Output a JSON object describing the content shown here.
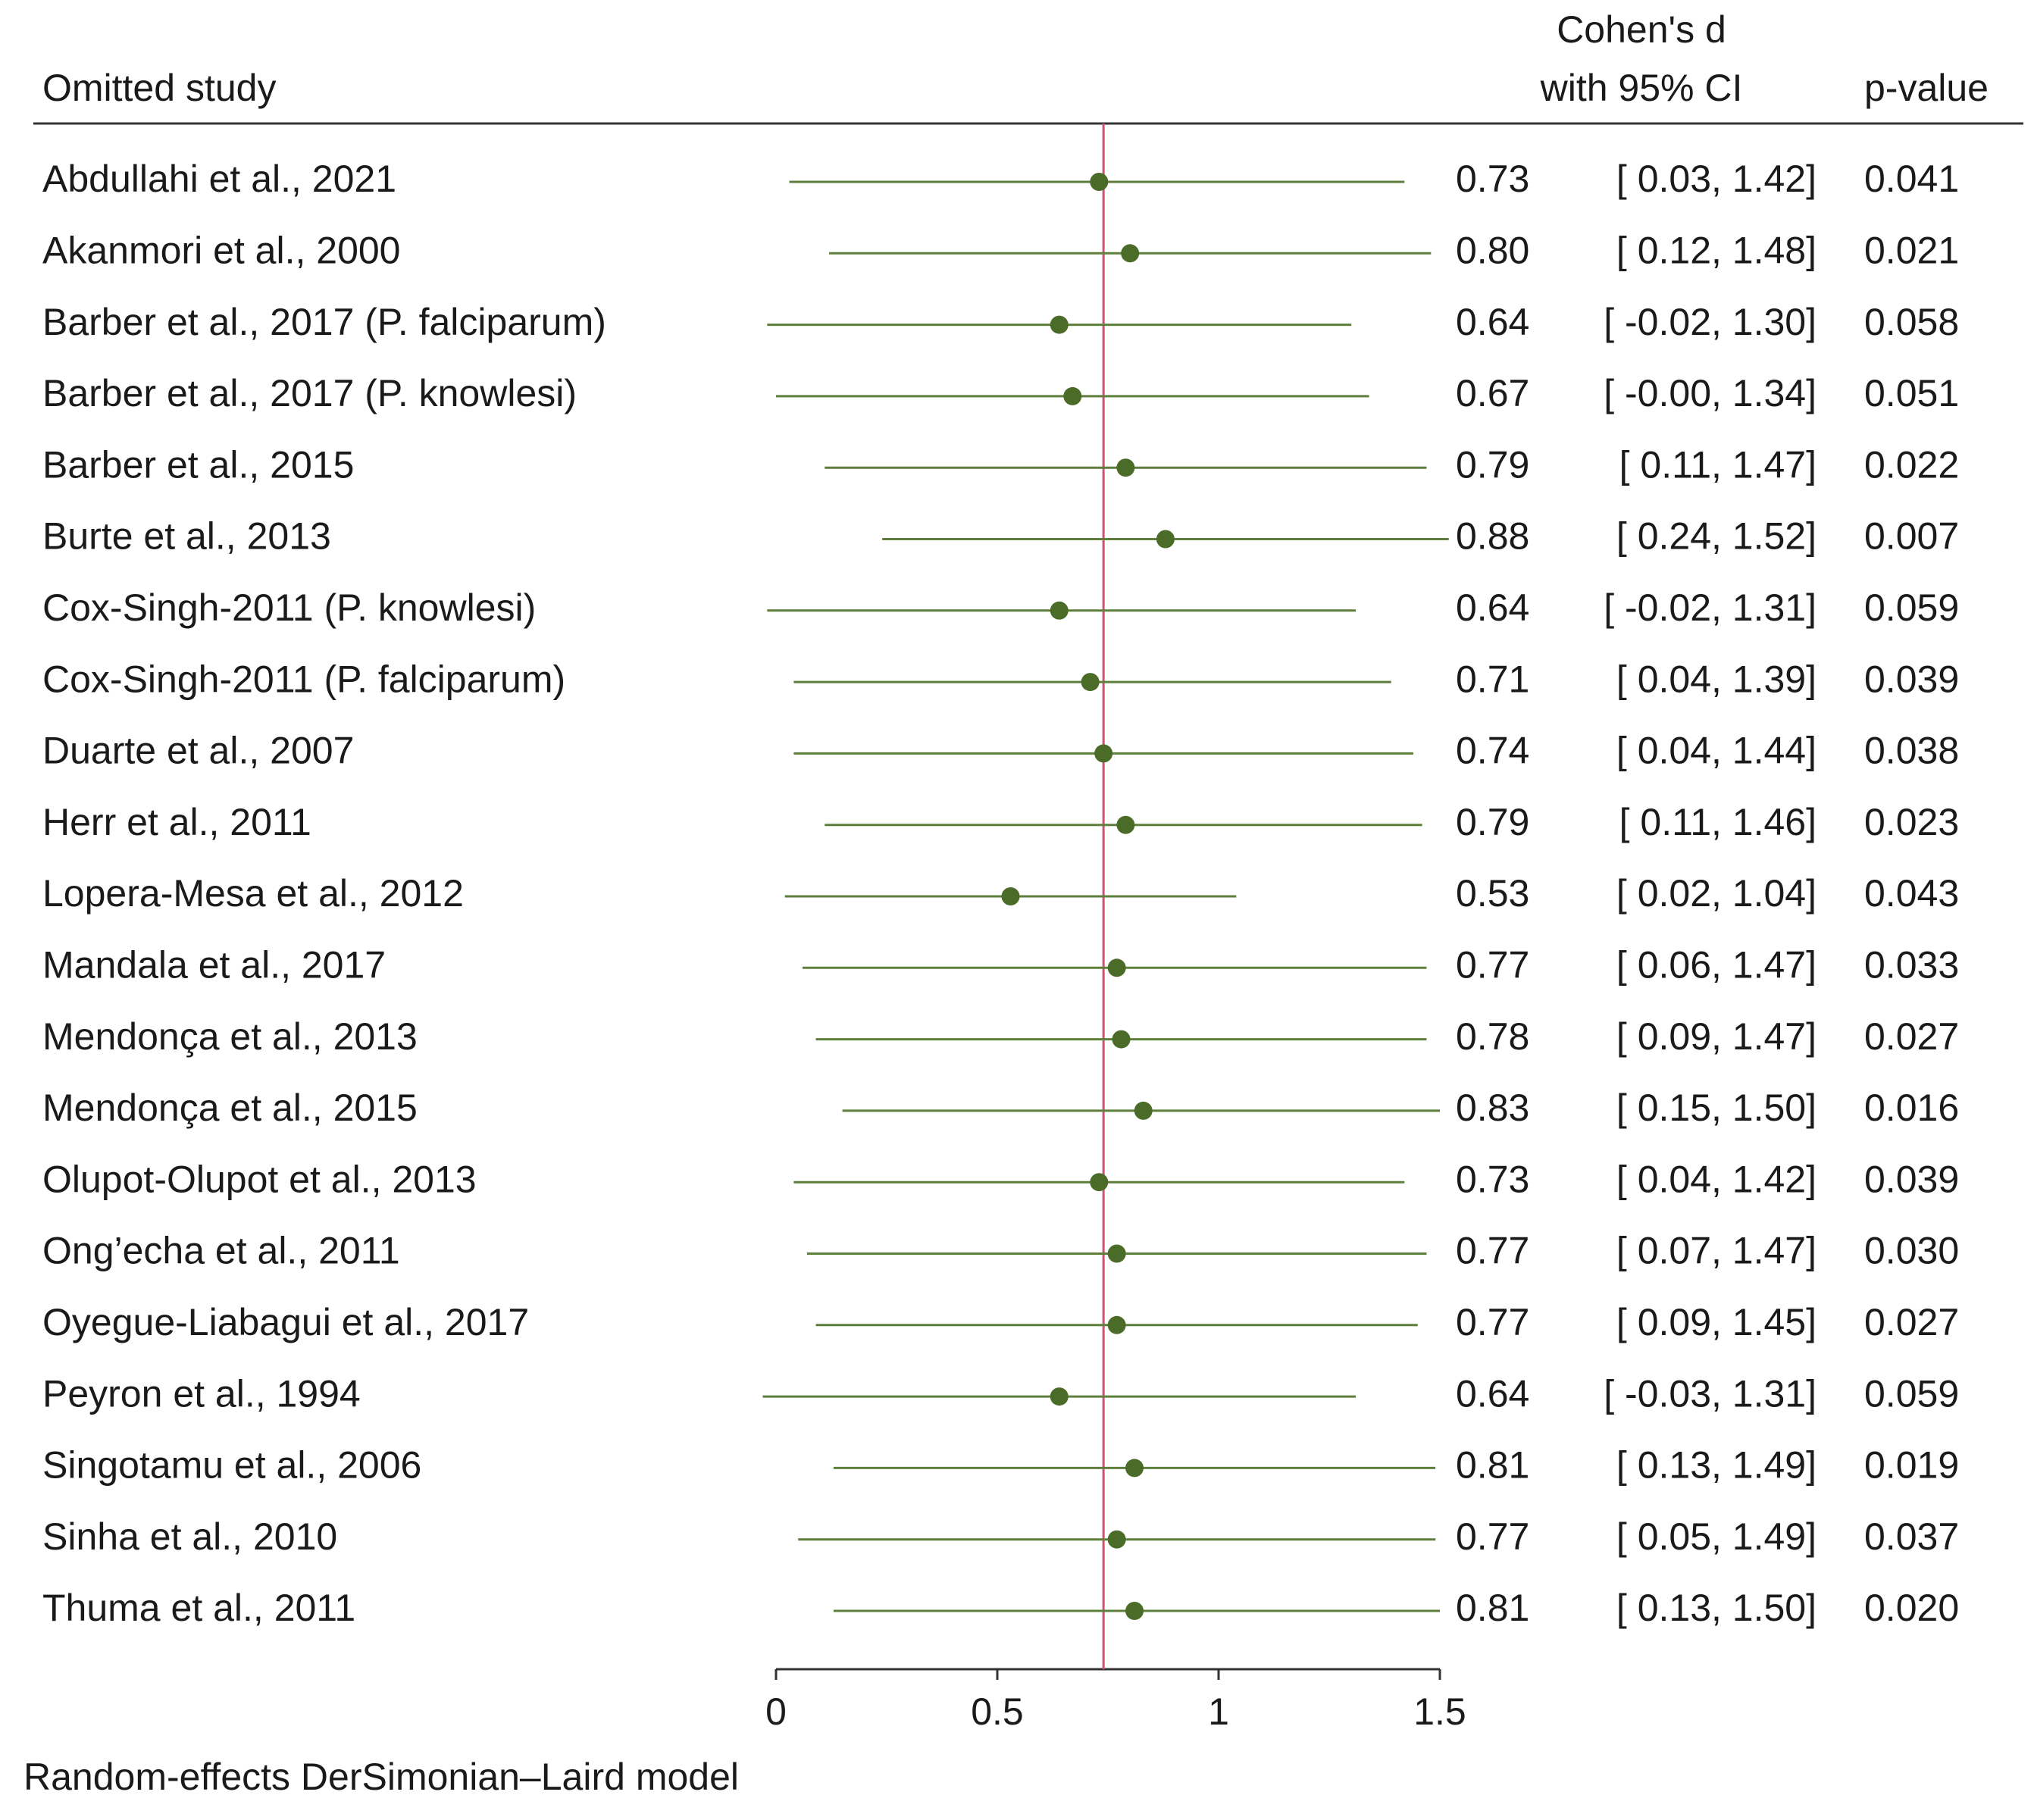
{
  "chart_data": {
    "type": "forest",
    "header_label": "Omitted study",
    "header_effect": [
      "Cohen's d",
      "with 95% CI"
    ],
    "header_p": "p-value",
    "footer": "Random-effects DerSimonian–Laird model",
    "categories": [
      "Abdullahi et al., 2021",
      "Akanmori et al., 2000",
      "Barber et al., 2017 (P. falciparum)",
      "Barber et al., 2017 (P. knowlesi)",
      "Barber et al., 2015",
      "Burte et al., 2013",
      "Cox-Singh-2011 (P. knowlesi)",
      "Cox-Singh-2011 (P. falciparum)",
      "Duarte et al., 2007",
      "Herr et al., 2011",
      "Lopera-Mesa et al., 2012",
      "Mandala et al., 2017",
      "Mendonça et al., 2013",
      "Mendonça et al., 2015",
      "Olupot-Olupot et al., 2013",
      "Ong’echa et al., 2011",
      "Oyegue-Liabagui et al., 2017",
      "Peyron et al., 1994",
      "Singotamu et al., 2006",
      "Sinha et al., 2010",
      "Thuma et al., 2011"
    ],
    "values": [
      0.73,
      0.8,
      0.64,
      0.67,
      0.79,
      0.88,
      0.64,
      0.71,
      0.74,
      0.79,
      0.53,
      0.77,
      0.78,
      0.83,
      0.73,
      0.77,
      0.77,
      0.64,
      0.81,
      0.77,
      0.81
    ],
    "value_labels": [
      "0.73",
      "0.80",
      "0.64",
      "0.67",
      "0.79",
      "0.88",
      "0.64",
      "0.71",
      "0.74",
      "0.79",
      "0.53",
      "0.77",
      "0.78",
      "0.83",
      "0.73",
      "0.77",
      "0.77",
      "0.64",
      "0.81",
      "0.77",
      "0.81"
    ],
    "lower": [
      0.03,
      0.12,
      -0.02,
      -0.0,
      0.11,
      0.24,
      -0.02,
      0.04,
      0.04,
      0.11,
      0.02,
      0.06,
      0.09,
      0.15,
      0.04,
      0.07,
      0.09,
      -0.03,
      0.13,
      0.05,
      0.13
    ],
    "upper": [
      1.42,
      1.48,
      1.3,
      1.34,
      1.47,
      1.52,
      1.31,
      1.39,
      1.44,
      1.46,
      1.04,
      1.47,
      1.47,
      1.5,
      1.42,
      1.47,
      1.45,
      1.31,
      1.49,
      1.49,
      1.5
    ],
    "ci_labels": [
      "[ 0.03, 1.42]",
      "[ 0.12, 1.48]",
      "[ -0.02, 1.30]",
      "[ -0.00, 1.34]",
      "[ 0.11, 1.47]",
      "[ 0.24, 1.52]",
      "[ -0.02, 1.31]",
      "[ 0.04, 1.39]",
      "[ 0.04, 1.44]",
      "[ 0.11, 1.46]",
      "[ 0.02, 1.04]",
      "[ 0.06, 1.47]",
      "[ 0.09, 1.47]",
      "[ 0.15, 1.50]",
      "[ 0.04, 1.42]",
      "[ 0.07, 1.47]",
      "[ 0.09, 1.45]",
      "[ -0.03, 1.31]",
      "[ 0.13, 1.49]",
      "[ 0.05, 1.49]",
      "[ 0.13, 1.50]"
    ],
    "p_values": [
      "0.041",
      "0.021",
      "0.058",
      "0.051",
      "0.022",
      "0.007",
      "0.059",
      "0.039",
      "0.038",
      "0.023",
      "0.043",
      "0.033",
      "0.027",
      "0.016",
      "0.039",
      "0.030",
      "0.027",
      "0.059",
      "0.019",
      "0.037",
      "0.020"
    ],
    "xlim": [
      0,
      1.5
    ],
    "xticks": [
      0,
      0.5,
      1,
      1.5
    ],
    "ref_line": 0.74,
    "ref_color": "#d2506e",
    "ci_color": "#5e7f3c",
    "point_color": "#4b6b28"
  }
}
